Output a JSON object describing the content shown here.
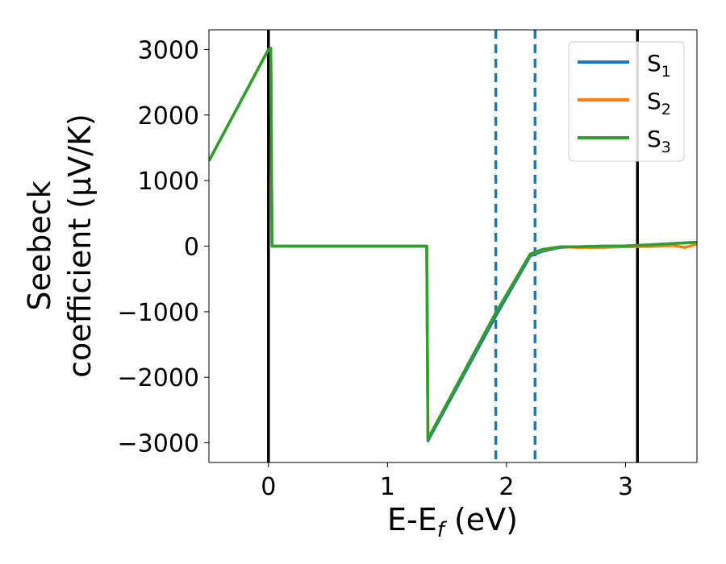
{
  "chart_data": {
    "type": "line",
    "title": "",
    "xlabel": {
      "main": "E-E",
      "sub": "f",
      "tail": " (eV)"
    },
    "ylabel": {
      "line1": "Seebeck",
      "line2": "coefficient  (μV/K)"
    },
    "xlim": [
      -0.5,
      3.6
    ],
    "ylim": [
      -3300,
      3300
    ],
    "x_ticks": [
      0,
      1,
      2,
      3
    ],
    "x_tick_labels": [
      "0",
      "1",
      "2",
      "3"
    ],
    "y_ticks": [
      -3000,
      -2000,
      -1000,
      0,
      1000,
      2000,
      3000
    ],
    "y_tick_labels": [
      "−3000",
      "−2000",
      "−1000",
      "0",
      "1000",
      "2000",
      "3000"
    ],
    "grid": false,
    "legend_position": "top-right",
    "vertical_lines": [
      {
        "x": 0,
        "style": "solid",
        "color": "#000000"
      },
      {
        "x": 3.1,
        "style": "solid",
        "color": "#000000"
      },
      {
        "x": 1.91,
        "style": "dashed",
        "color": "#1f77b4"
      },
      {
        "x": 2.24,
        "style": "dashed",
        "color": "#1f77b4"
      }
    ],
    "series": [
      {
        "name": "S",
        "sub": "1",
        "color": "#1f77b4",
        "x": [
          -0.5,
          0.0,
          0.02,
          0.03,
          1.33,
          1.34,
          1.9,
          2.2,
          2.3,
          2.45,
          2.6,
          2.8,
          3.0,
          3.2,
          3.4,
          3.6
        ],
        "y": [
          1300,
          3000,
          3020,
          0,
          0,
          -2970,
          -1100,
          -150,
          -80,
          -20,
          -10,
          0,
          0,
          20,
          40,
          60
        ]
      },
      {
        "name": "S",
        "sub": "2",
        "color": "#ff7f0e",
        "x": [
          -0.5,
          0.0,
          0.02,
          0.03,
          1.33,
          1.34,
          1.9,
          2.2,
          2.3,
          2.45,
          2.6,
          2.8,
          3.0,
          3.2,
          3.4,
          3.5,
          3.6
        ],
        "y": [
          1300,
          3000,
          3020,
          0,
          0,
          -2940,
          -1050,
          -120,
          -60,
          -10,
          -20,
          -20,
          -10,
          -5,
          10,
          -20,
          30
        ]
      },
      {
        "name": "S",
        "sub": "3",
        "color": "#2ca02c",
        "x": [
          -0.5,
          0.0,
          0.02,
          0.03,
          1.33,
          1.34,
          1.9,
          2.2,
          2.3,
          2.45,
          2.6,
          2.8,
          3.0,
          3.2,
          3.4,
          3.6
        ],
        "y": [
          1300,
          3000,
          3020,
          0,
          0,
          -2940,
          -1050,
          -120,
          -50,
          -10,
          -10,
          0,
          5,
          20,
          40,
          60
        ]
      }
    ]
  }
}
